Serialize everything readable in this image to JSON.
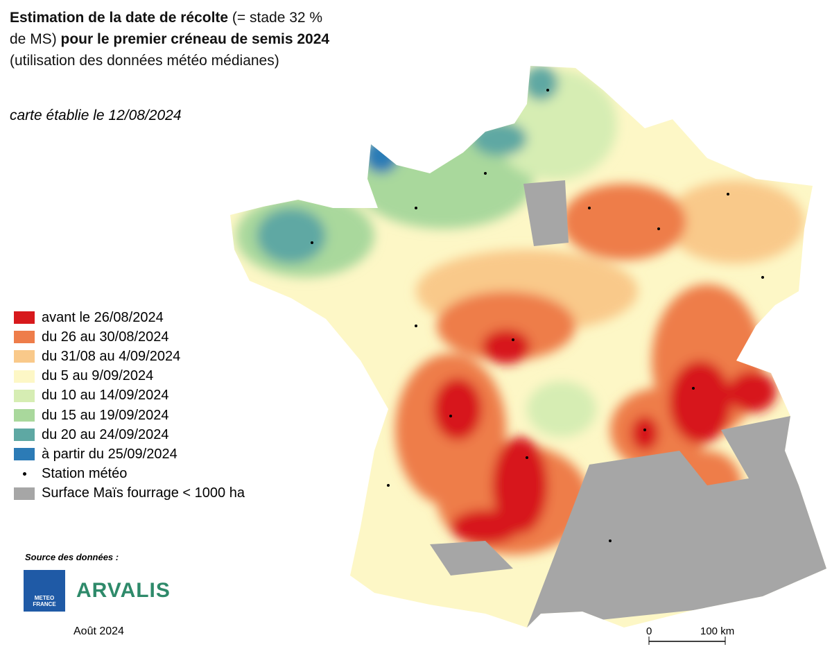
{
  "header": {
    "title": [
      {
        "text": "Estimation de la date de récolte",
        "bold": true
      },
      {
        "text": " (= stade 32 %",
        "bold": false
      },
      {
        "text": "de MS) ",
        "bold": false
      },
      {
        "text": "pour le premier créneau de semis 2024",
        "bold": true
      }
    ],
    "subtitle": "(utilisation des données météo médianes)",
    "note": "carte établie le 12/08/2024"
  },
  "legend": [
    {
      "label": "avant le 26/08/2024",
      "color": "#d7191c",
      "symbol": "square"
    },
    {
      "label": "du 26 au 30/08/2024",
      "color": "#ee7d4a",
      "symbol": "square"
    },
    {
      "label": "du 31/08 au 4/09/2024",
      "color": "#f9c98a",
      "symbol": "square"
    },
    {
      "label": "du 5 au 9/09/2024",
      "color": "#fdf7c6",
      "symbol": "square"
    },
    {
      "label": "du 10 au 14/09/2024",
      "color": "#d6edb3",
      "symbol": "square"
    },
    {
      "label": "du 15 au 19/09/2024",
      "color": "#a9d89c",
      "symbol": "square"
    },
    {
      "label": "du 20 au 24/09/2024",
      "color": "#5ea8a3",
      "symbol": "square"
    },
    {
      "label": "à partir du 25/09/2024",
      "color": "#2c7bb6",
      "symbol": "square"
    },
    {
      "label": "Station météo",
      "color": "#000000",
      "symbol": "dot"
    },
    {
      "label": "Surface Maïs fourrage < 1000 ha",
      "color": "#a6a6a6",
      "symbol": "square"
    }
  ],
  "footer": {
    "source": "Source des données :",
    "logo1": [
      "METEO",
      "FRANCE"
    ],
    "logo2": "ARVALIS",
    "date": "Août 2024"
  },
  "scale": {
    "start": "0",
    "end": "100 km"
  }
}
